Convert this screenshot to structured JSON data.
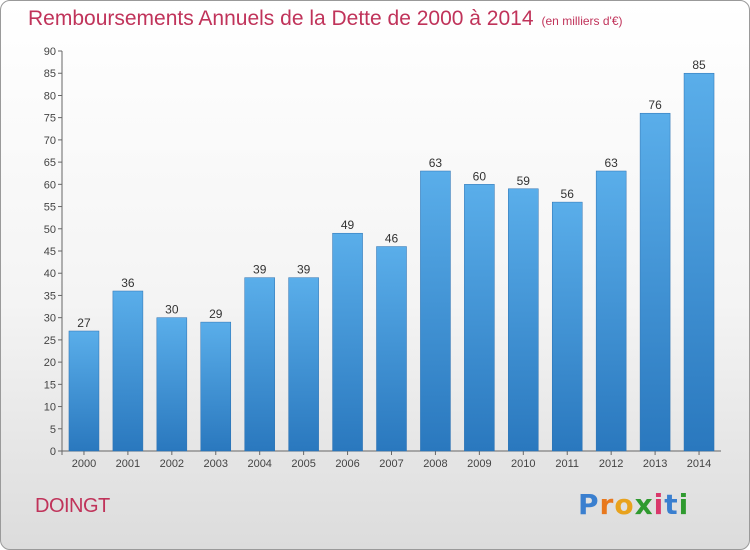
{
  "chart_data": {
    "type": "bar",
    "title": "Remboursements Annuels de la Dette de 2000 à 2014",
    "subtitle": "(en milliers d'€)",
    "categories": [
      "2000",
      "2001",
      "2002",
      "2003",
      "2004",
      "2005",
      "2006",
      "2007",
      "2008",
      "2009",
      "2010",
      "2011",
      "2012",
      "2013",
      "2014"
    ],
    "values": [
      27,
      36,
      30,
      29,
      39,
      39,
      49,
      46,
      63,
      60,
      59,
      56,
      63,
      76,
      85
    ],
    "ylim": [
      0,
      90
    ],
    "ytick_step": 5,
    "xlabel": "",
    "ylabel": "",
    "grid": false,
    "bar_color": "#4a9be0",
    "axis_color": "#666666"
  },
  "footer": {
    "town": "DOINGT",
    "logo_letters": [
      "P",
      "r",
      "o",
      "x",
      "i",
      "t",
      "i"
    ],
    "logo_colors": [
      "#3a7fcf",
      "#e8781d",
      "#e8a21d",
      "#2f9a2f",
      "#d9386b",
      "#3a7fcf",
      "#2f9a2f"
    ]
  }
}
